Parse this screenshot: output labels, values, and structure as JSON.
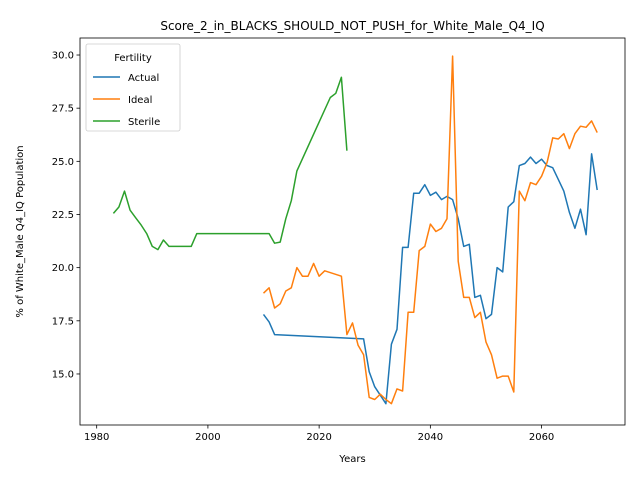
{
  "chart_data": {
    "type": "line",
    "title": "Score_2_in_BLACKS_SHOULD_NOT_PUSH_for_White_Male_Q4_IQ",
    "xlabel": "Years",
    "ylabel": "% of White_Male Q4_IQ Population",
    "xlim": [
      1977,
      2075
    ],
    "ylim": [
      12.6,
      30.8
    ],
    "xticks": [
      1980,
      2000,
      2020,
      2040,
      2060
    ],
    "yticks": [
      15.0,
      17.5,
      20.0,
      22.5,
      25.0,
      27.5,
      30.0
    ],
    "xtick_labels": [
      "1980",
      "2000",
      "2020",
      "2040",
      "2060"
    ],
    "ytick_labels": [
      "15.0",
      "17.5",
      "20.0",
      "22.5",
      "25.0",
      "27.5",
      "30.0"
    ],
    "grid": false,
    "legend": {
      "title": "Fertility",
      "placement": "top-left"
    },
    "series": [
      {
        "name": "Actual",
        "color": "#1f77b4",
        "x": [
          2010,
          2011,
          2012,
          2028,
          2029,
          2030,
          2031,
          2032,
          2033,
          2034,
          2035,
          2036,
          2037,
          2038,
          2039,
          2040,
          2041,
          2042,
          2043,
          2044,
          2045,
          2046,
          2047,
          2048,
          2049,
          2050,
          2051,
          2052,
          2053,
          2054,
          2055,
          2056,
          2057,
          2058,
          2059,
          2060,
          2061,
          2062,
          2063,
          2064,
          2065,
          2066,
          2067,
          2068,
          2069,
          2070
        ],
        "y": [
          17.8,
          17.45,
          16.85,
          16.65,
          15.1,
          14.4,
          14.0,
          13.6,
          16.4,
          17.1,
          20.95,
          20.95,
          23.5,
          23.5,
          23.9,
          23.4,
          23.55,
          23.2,
          23.35,
          23.2,
          22.3,
          21.0,
          21.1,
          18.6,
          18.7,
          17.6,
          17.8,
          20.0,
          19.8,
          22.85,
          23.1,
          24.8,
          24.9,
          25.2,
          24.9,
          25.1,
          24.8,
          24.7,
          24.15,
          23.6,
          22.6,
          21.85,
          22.75,
          21.55,
          25.35,
          23.65
        ]
      },
      {
        "name": "Ideal",
        "color": "#ff7f0e",
        "x": [
          2010,
          2011,
          2012,
          2013,
          2014,
          2015,
          2016,
          2017,
          2018,
          2019,
          2020,
          2021,
          2024,
          2025,
          2026,
          2027,
          2028,
          2029,
          2030,
          2031,
          2032,
          2033,
          2034,
          2035,
          2036,
          2037,
          2038,
          2039,
          2040,
          2041,
          2042,
          2043,
          2044,
          2045,
          2046,
          2047,
          2048,
          2049,
          2050,
          2051,
          2052,
          2053,
          2054,
          2055,
          2056,
          2057,
          2058,
          2059,
          2060,
          2061,
          2062,
          2063,
          2064,
          2065,
          2066,
          2067,
          2068,
          2069,
          2070
        ],
        "y": [
          18.8,
          19.05,
          18.1,
          18.3,
          18.9,
          19.05,
          20.0,
          19.6,
          19.6,
          20.2,
          19.6,
          19.85,
          19.6,
          16.85,
          17.4,
          16.35,
          15.9,
          13.9,
          13.8,
          14.05,
          13.8,
          13.6,
          14.3,
          14.2,
          17.9,
          17.9,
          20.8,
          21.0,
          22.05,
          21.7,
          21.85,
          22.3,
          29.95,
          20.3,
          18.6,
          18.6,
          17.65,
          17.9,
          16.5,
          15.9,
          14.8,
          14.9,
          14.9,
          14.15,
          23.6,
          23.15,
          24.0,
          23.9,
          24.3,
          24.95,
          26.1,
          26.05,
          26.3,
          25.6,
          26.3,
          26.65,
          26.6,
          26.9,
          26.35
        ]
      },
      {
        "name": "Sterile",
        "color": "#2ca02c",
        "x": [
          1983,
          1984,
          1985,
          1986,
          1987,
          1988,
          1989,
          1990,
          1991,
          1992,
          1993,
          1994,
          1995,
          1996,
          1997,
          1998,
          1999,
          2000,
          2001,
          2002,
          2003,
          2004,
          2005,
          2006,
          2007,
          2008,
          2009,
          2010,
          2011,
          2012,
          2013,
          2014,
          2015,
          2016,
          2022,
          2023,
          2024,
          2025
        ],
        "y": [
          22.55,
          22.85,
          23.6,
          22.7,
          22.35,
          22.0,
          21.6,
          21.0,
          20.85,
          21.3,
          21.0,
          21.0,
          21.0,
          21.0,
          21.0,
          21.6,
          21.6,
          21.6,
          21.6,
          21.6,
          21.6,
          21.6,
          21.6,
          21.6,
          21.6,
          21.6,
          21.6,
          21.6,
          21.6,
          21.15,
          21.2,
          22.3,
          23.15,
          24.55,
          28.0,
          28.2,
          28.95,
          25.5
        ]
      }
    ]
  }
}
